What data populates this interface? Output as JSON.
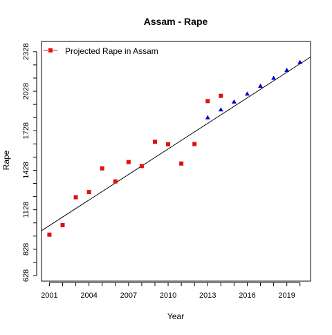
{
  "chart_data": {
    "type": "scatter",
    "title": "Assam  -  Rape",
    "xlabel": "Year",
    "ylabel": "Rape",
    "xlim": [
      2000.4,
      2020.8
    ],
    "ylim": [
      586,
      2406
    ],
    "x_ticks": [
      2001,
      2004,
      2007,
      2010,
      2013,
      2016,
      2019
    ],
    "y_ticks": [
      628,
      828,
      1128,
      1428,
      1728,
      2028,
      2328
    ],
    "y_ticks_unlabeled": [
      728,
      928,
      1028,
      1228,
      1328,
      1528,
      1628,
      1828,
      1928,
      2128,
      2228
    ],
    "legend": {
      "position": "top-left",
      "label": "Projected Rape in Assam"
    },
    "series": [
      {
        "name": "Projected Rape in Assam",
        "marker": "square",
        "color": "#e01010",
        "x": [
          2001,
          2002,
          2003,
          2004,
          2005,
          2006,
          2007,
          2008,
          2009,
          2010,
          2011,
          2012,
          2013,
          2014
        ],
        "y": [
          939,
          1011,
          1223,
          1262,
          1442,
          1343,
          1490,
          1460,
          1644,
          1625,
          1479,
          1627,
          1953,
          1993
        ]
      },
      {
        "marker": "triangle",
        "color": "#0000cc",
        "x": [
          2013,
          2014,
          2015,
          2016,
          2017,
          2018,
          2019,
          2020
        ],
        "y": [
          1828,
          1888,
          1948,
          2008,
          2068,
          2128,
          2188,
          2248
        ]
      }
    ],
    "trend_line": {
      "color": "#000000",
      "x": [
        2000.4,
        2020.8
      ],
      "y": [
        969,
        2288
      ]
    }
  }
}
